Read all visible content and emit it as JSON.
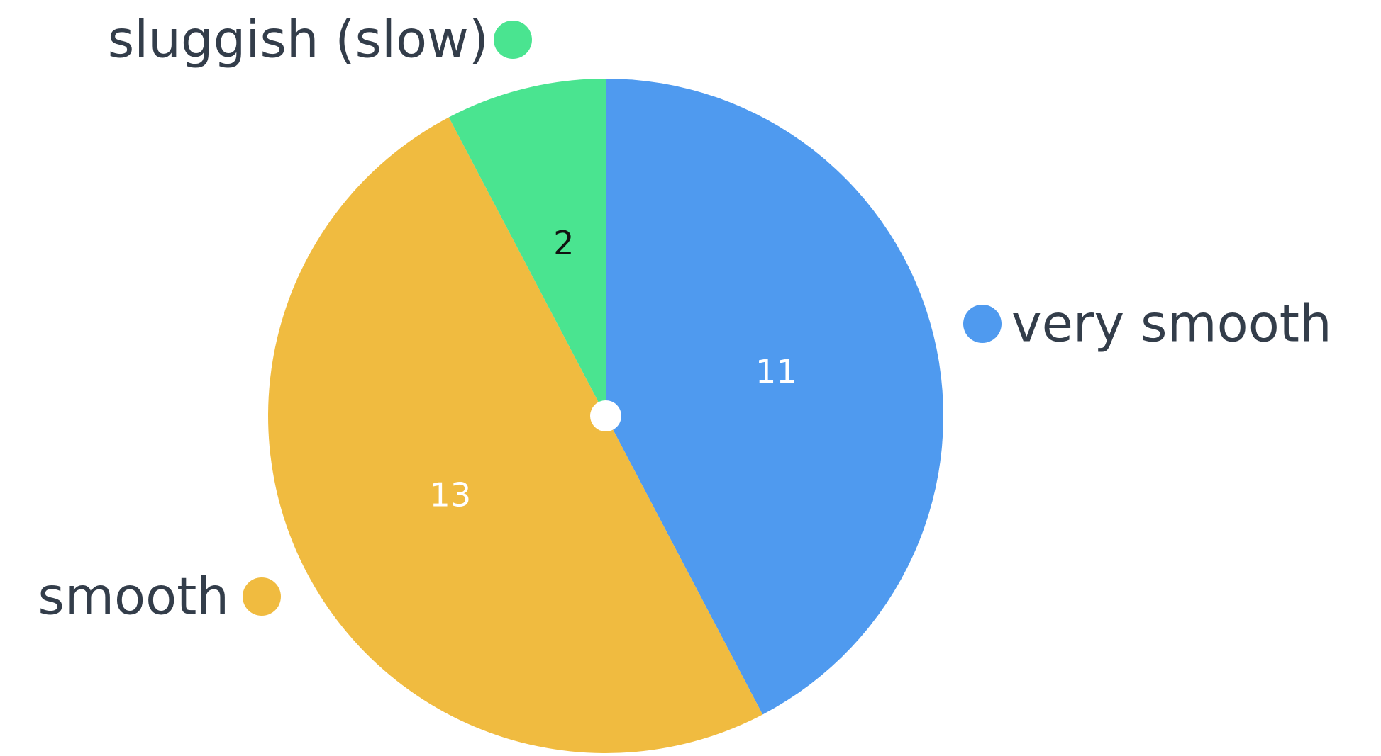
{
  "chart_data": {
    "type": "pie",
    "categories": [
      "very smooth",
      "smooth",
      "sluggish (slow)"
    ],
    "values": [
      11,
      13,
      2
    ],
    "colors": [
      "#4f9aef",
      "#f0bb40",
      "#4ae490"
    ],
    "label_colors": [
      "#ffffff",
      "#ffffff",
      "#111111"
    ]
  }
}
